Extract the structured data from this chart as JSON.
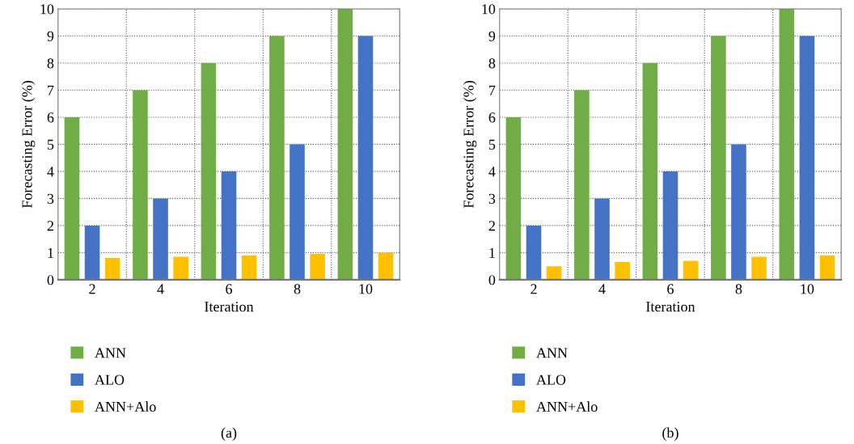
{
  "chart_data": [
    {
      "type": "bar",
      "xlabel": "Iteration",
      "ylabel": "Forecasting Error (%)",
      "categories": [
        "2",
        "4",
        "6",
        "8",
        "10"
      ],
      "series": [
        {
          "name": "ANN",
          "color": "#70ad47",
          "values": [
            6,
            7,
            8,
            9,
            10
          ]
        },
        {
          "name": "ALO",
          "color": "#4472c4",
          "values": [
            2,
            3,
            4,
            5,
            9
          ]
        },
        {
          "name": "ANN+Alo",
          "color": "#ffc000",
          "values": [
            0.8,
            0.85,
            0.9,
            0.95,
            1.0
          ]
        }
      ],
      "ylim": [
        0,
        10
      ],
      "yticks": [
        0,
        1,
        2,
        3,
        4,
        5,
        6,
        7,
        8,
        9,
        10
      ],
      "grid": true,
      "line_style": "dotted",
      "legend": "bottom",
      "annotations": [
        "(a)"
      ]
    },
    {
      "type": "bar",
      "xlabel": "Iteration",
      "ylabel": "Forecasting Error (%)",
      "categories": [
        "2",
        "4",
        "6",
        "8",
        "10"
      ],
      "series": [
        {
          "name": "ANN",
          "color": "#70ad47",
          "values": [
            6,
            7,
            8,
            9,
            10
          ]
        },
        {
          "name": "ALO",
          "color": "#4472c4",
          "values": [
            2,
            3,
            4,
            5,
            9
          ]
        },
        {
          "name": "ANN+Alo",
          "color": "#ffc000",
          "values": [
            0.5,
            0.65,
            0.7,
            0.85,
            0.9
          ]
        }
      ],
      "ylim": [
        0,
        10
      ],
      "yticks": [
        0,
        1,
        2,
        3,
        4,
        5,
        6,
        7,
        8,
        9,
        10
      ],
      "grid": true,
      "line_style": "dotted",
      "legend": "bottom",
      "annotations": [
        "(b)"
      ]
    }
  ]
}
